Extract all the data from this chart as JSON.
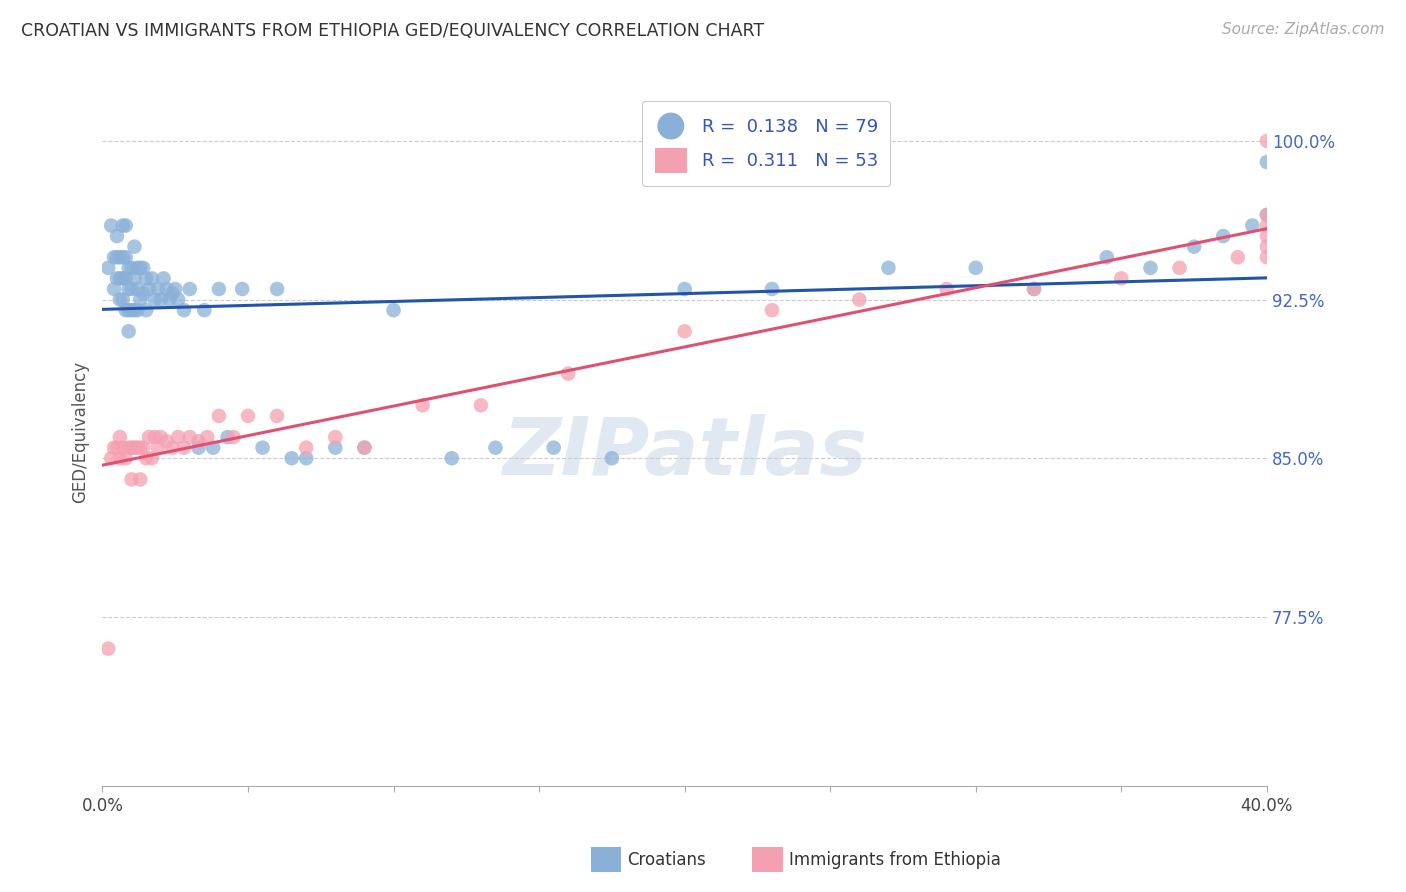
{
  "title": "CROATIAN VS IMMIGRANTS FROM ETHIOPIA GED/EQUIVALENCY CORRELATION CHART",
  "source": "Source: ZipAtlas.com",
  "ylabel": "GED/Equivalency",
  "ytick_labels": [
    "100.0%",
    "92.5%",
    "85.0%",
    "77.5%"
  ],
  "ytick_values": [
    1.0,
    0.925,
    0.85,
    0.775
  ],
  "xlim": [
    0.0,
    0.4
  ],
  "ylim": [
    0.695,
    1.03
  ],
  "legend": {
    "blue_r": "0.138",
    "blue_n": "79",
    "pink_r": "0.311",
    "pink_n": "53"
  },
  "blue_color": "#8ab0d8",
  "pink_color": "#f5a0b0",
  "blue_line_color": "#2255aa",
  "pink_line_color": "#e05070",
  "watermark": "ZIPatlas",
  "croatians_x": [
    0.002,
    0.003,
    0.004,
    0.004,
    0.005,
    0.005,
    0.005,
    0.006,
    0.006,
    0.006,
    0.007,
    0.007,
    0.007,
    0.007,
    0.008,
    0.008,
    0.008,
    0.008,
    0.009,
    0.009,
    0.009,
    0.009,
    0.01,
    0.01,
    0.01,
    0.011,
    0.011,
    0.011,
    0.012,
    0.012,
    0.012,
    0.013,
    0.013,
    0.014,
    0.014,
    0.015,
    0.015,
    0.016,
    0.017,
    0.018,
    0.019,
    0.02,
    0.021,
    0.022,
    0.023,
    0.024,
    0.025,
    0.026,
    0.028,
    0.03,
    0.033,
    0.035,
    0.038,
    0.04,
    0.043,
    0.048,
    0.055,
    0.06,
    0.065,
    0.07,
    0.08,
    0.09,
    0.1,
    0.12,
    0.135,
    0.155,
    0.175,
    0.2,
    0.23,
    0.27,
    0.3,
    0.32,
    0.345,
    0.36,
    0.375,
    0.385,
    0.395,
    0.4,
    0.4
  ],
  "croatians_y": [
    0.94,
    0.96,
    0.945,
    0.93,
    0.955,
    0.945,
    0.935,
    0.945,
    0.935,
    0.925,
    0.96,
    0.945,
    0.935,
    0.925,
    0.96,
    0.945,
    0.935,
    0.92,
    0.94,
    0.93,
    0.92,
    0.91,
    0.94,
    0.93,
    0.92,
    0.95,
    0.935,
    0.92,
    0.94,
    0.93,
    0.92,
    0.94,
    0.925,
    0.94,
    0.928,
    0.935,
    0.92,
    0.93,
    0.935,
    0.925,
    0.93,
    0.925,
    0.935,
    0.93,
    0.925,
    0.928,
    0.93,
    0.925,
    0.92,
    0.93,
    0.855,
    0.92,
    0.855,
    0.93,
    0.86,
    0.93,
    0.855,
    0.93,
    0.85,
    0.85,
    0.855,
    0.855,
    0.92,
    0.85,
    0.855,
    0.855,
    0.85,
    0.93,
    0.93,
    0.94,
    0.94,
    0.93,
    0.945,
    0.94,
    0.95,
    0.955,
    0.96,
    0.965,
    0.99
  ],
  "ethiopia_x": [
    0.002,
    0.003,
    0.004,
    0.005,
    0.006,
    0.006,
    0.007,
    0.008,
    0.009,
    0.01,
    0.01,
    0.011,
    0.012,
    0.013,
    0.013,
    0.014,
    0.015,
    0.016,
    0.017,
    0.018,
    0.019,
    0.02,
    0.022,
    0.024,
    0.026,
    0.028,
    0.03,
    0.033,
    0.036,
    0.04,
    0.045,
    0.05,
    0.06,
    0.07,
    0.08,
    0.09,
    0.11,
    0.13,
    0.16,
    0.2,
    0.23,
    0.26,
    0.29,
    0.32,
    0.35,
    0.37,
    0.39,
    0.4,
    0.4,
    0.4,
    0.4,
    0.4,
    0.4
  ],
  "ethiopia_y": [
    0.76,
    0.85,
    0.855,
    0.855,
    0.86,
    0.85,
    0.855,
    0.85,
    0.855,
    0.855,
    0.84,
    0.855,
    0.855,
    0.855,
    0.84,
    0.855,
    0.85,
    0.86,
    0.85,
    0.86,
    0.855,
    0.86,
    0.858,
    0.855,
    0.86,
    0.855,
    0.86,
    0.858,
    0.86,
    0.87,
    0.86,
    0.87,
    0.87,
    0.855,
    0.86,
    0.855,
    0.875,
    0.875,
    0.89,
    0.91,
    0.92,
    0.925,
    0.93,
    0.93,
    0.935,
    0.94,
    0.945,
    0.945,
    0.95,
    0.955,
    0.96,
    0.965,
    1.0
  ]
}
